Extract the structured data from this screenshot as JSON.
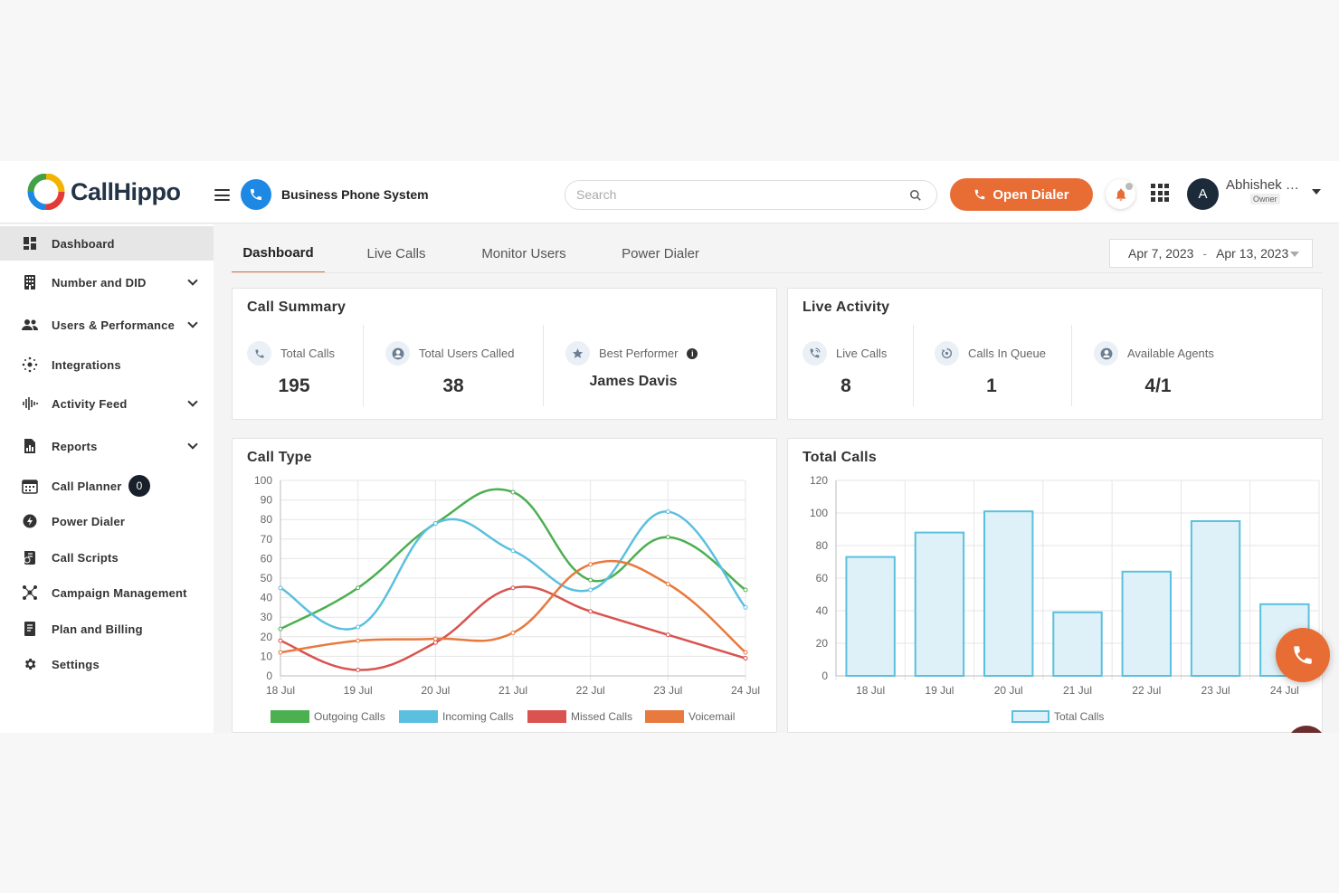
{
  "header": {
    "brand": "CallHippo",
    "system_title": "Business Phone System",
    "search_placeholder": "Search",
    "open_dialer_label": "Open Dialer",
    "user": {
      "initial": "A",
      "name": "Abhishek Si...",
      "role": "Owner"
    }
  },
  "sidebar": {
    "items": [
      {
        "label": "Dashboard",
        "icon": "dashboard-icon",
        "active": true
      },
      {
        "label": "Number and DID",
        "icon": "building-icon",
        "expandable": true
      },
      {
        "label": "Users & Performance",
        "icon": "users-icon",
        "expandable": true
      },
      {
        "label": "Integrations",
        "icon": "integrations-icon"
      },
      {
        "label": "Activity Feed",
        "icon": "waveform-icon",
        "expandable": true
      },
      {
        "label": "Reports",
        "icon": "report-icon",
        "expandable": true
      },
      {
        "label": "Call Planner",
        "icon": "calendar-icon",
        "badge": "0"
      },
      {
        "label": "Power Dialer",
        "icon": "bolt-icon"
      },
      {
        "label": "Call Scripts",
        "icon": "script-icon"
      },
      {
        "label": "Campaign Management",
        "icon": "campaign-icon"
      },
      {
        "label": "Plan and Billing",
        "icon": "billing-icon"
      },
      {
        "label": "Settings",
        "icon": "gear-icon"
      }
    ]
  },
  "tabs": [
    {
      "label": "Dashboard",
      "active": true
    },
    {
      "label": "Live Calls"
    },
    {
      "label": "Monitor Users"
    },
    {
      "label": "Power Dialer"
    }
  ],
  "date_range": {
    "start": "Apr 7, 2023",
    "separator": "-",
    "end": "Apr 13, 2023"
  },
  "call_summary": {
    "title": "Call Summary",
    "total_calls": {
      "label": "Total Calls",
      "value": "195"
    },
    "total_users_called": {
      "label": "Total Users Called",
      "value": "38"
    },
    "best_performer": {
      "label": "Best Performer",
      "value": "James Davis"
    }
  },
  "live_activity": {
    "title": "Live Activity",
    "live_calls": {
      "label": "Live Calls",
      "value": "8"
    },
    "calls_in_queue": {
      "label": "Calls In Queue",
      "value": "1"
    },
    "available_agents": {
      "label": "Available Agents",
      "value": "4/1"
    }
  },
  "colors": {
    "accent": "#e76d35",
    "outgoing": "#4caf50",
    "incoming": "#5bc0de",
    "missed": "#d9534f",
    "voicemail": "#e8793f",
    "total_bar_fill": "#dff1f8",
    "total_bar_stroke": "#5bc0de"
  },
  "chart_data": [
    {
      "type": "line",
      "title": "Call Type",
      "x": [
        "18 Jul",
        "19 Jul",
        "20 Jul",
        "21 Jul",
        "22 Jul",
        "23 Jul",
        "24 Jul"
      ],
      "ylim": [
        0,
        100
      ],
      "yticks": [
        0,
        10,
        20,
        30,
        40,
        50,
        60,
        70,
        80,
        90,
        100
      ],
      "grid": true,
      "legend": "bottom",
      "series": [
        {
          "name": "Outgoing Calls",
          "values": [
            24,
            45,
            78,
            94,
            49,
            71,
            44
          ]
        },
        {
          "name": "Incoming Calls",
          "values": [
            45,
            25,
            78,
            64,
            44,
            84,
            35
          ]
        },
        {
          "name": "Missed Calls",
          "values": [
            18,
            3,
            17,
            45,
            33,
            21,
            9
          ]
        },
        {
          "name": "Voicemail",
          "values": [
            12,
            18,
            19,
            22,
            57,
            47,
            12
          ]
        }
      ]
    },
    {
      "type": "bar",
      "title": "Total Calls",
      "categories": [
        "18 Jul",
        "19 Jul",
        "20 Jul",
        "21 Jul",
        "22 Jul",
        "23 Jul",
        "24 Jul"
      ],
      "ylim": [
        0,
        120
      ],
      "yticks": [
        0,
        20,
        40,
        60,
        80,
        100,
        120
      ],
      "grid": true,
      "legend": "bottom",
      "series": [
        {
          "name": "Total Calls",
          "values": [
            73,
            88,
            101,
            39,
            64,
            95,
            44
          ]
        }
      ]
    }
  ]
}
